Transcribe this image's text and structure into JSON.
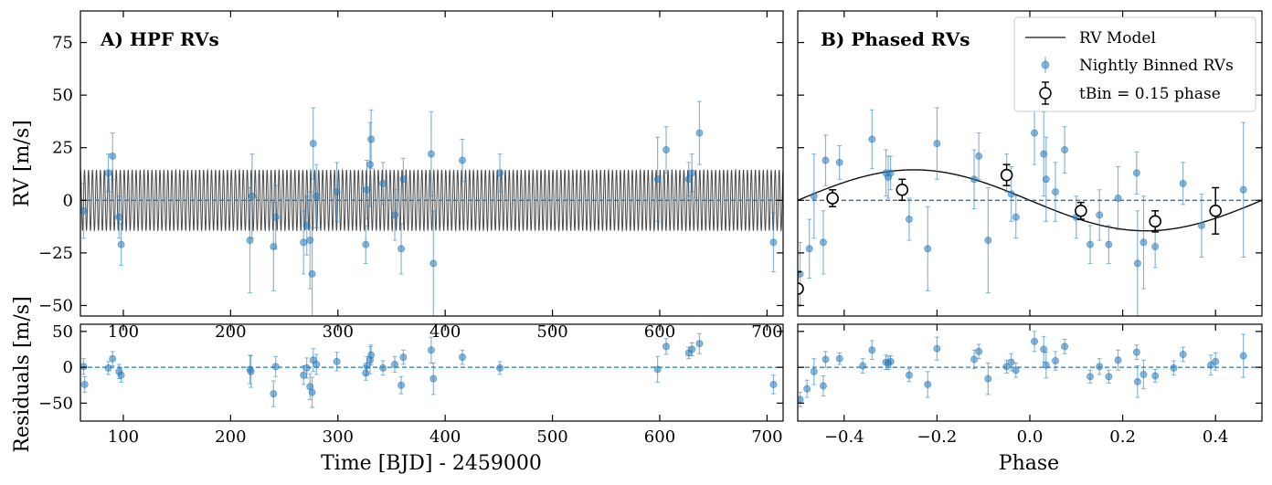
{
  "colors": {
    "points": "#2a7ab9",
    "model": "#111111",
    "zero_line": "#2a7ab9",
    "bins": "#000000"
  },
  "chart_data": [
    {
      "type": "scatter",
      "title": "A) HPF RVs",
      "xlabel": "",
      "ylabel": "RV [m/s]",
      "xlim": [
        60,
        715
      ],
      "ylim": [
        -55,
        90
      ],
      "xticks": [
        "100",
        "200",
        "300",
        "400",
        "500",
        "600",
        "700"
      ],
      "yticks": [
        "75",
        "50",
        "25",
        "0",
        "−25",
        "−50"
      ],
      "model": {
        "type": "sinusoid",
        "amplitude": 14.5,
        "period_days": 3.7,
        "color": "#111111"
      },
      "series": [
        {
          "points": [
            {
              "x": 63,
              "y": -5,
              "err": 13
            },
            {
              "x": 86,
              "y": 13,
              "err": 9
            },
            {
              "x": 90,
              "y": 21,
              "err": 11
            },
            {
              "x": 96,
              "y": -8,
              "err": 10
            },
            {
              "x": 98,
              "y": -21,
              "err": 10
            },
            {
              "x": 218,
              "y": -19,
              "err": 25
            },
            {
              "x": 220,
              "y": 2,
              "err": 20
            },
            {
              "x": 240,
              "y": -22,
              "err": 21
            },
            {
              "x": 242,
              "y": -8,
              "err": 15
            },
            {
              "x": 268,
              "y": -20,
              "err": 15
            },
            {
              "x": 271,
              "y": -12,
              "err": 14
            },
            {
              "x": 274,
              "y": -19,
              "err": 23
            },
            {
              "x": 276,
              "y": -35,
              "err": 22
            },
            {
              "x": 277,
              "y": 27,
              "err": 17
            },
            {
              "x": 280,
              "y": 2,
              "err": 15
            },
            {
              "x": 299,
              "y": 4,
              "err": 14
            },
            {
              "x": 326,
              "y": -21,
              "err": 9
            },
            {
              "x": 327,
              "y": 5,
              "err": 14
            },
            {
              "x": 330,
              "y": 17,
              "err": 20
            },
            {
              "x": 331,
              "y": 29,
              "err": 14
            },
            {
              "x": 342,
              "y": 8,
              "err": 10
            },
            {
              "x": 353,
              "y": -7,
              "err": 12
            },
            {
              "x": 359,
              "y": -23,
              "err": 12
            },
            {
              "x": 361,
              "y": 10,
              "err": 10
            },
            {
              "x": 387,
              "y": 22,
              "err": 20
            },
            {
              "x": 389,
              "y": -30,
              "err": 25
            },
            {
              "x": 416,
              "y": 19,
              "err": 10
            },
            {
              "x": 451,
              "y": 13,
              "err": 9
            },
            {
              "x": 598,
              "y": 10,
              "err": 20
            },
            {
              "x": 606,
              "y": 24,
              "err": 11
            },
            {
              "x": 627,
              "y": 10,
              "err": 8
            },
            {
              "x": 630,
              "y": 13,
              "err": 9
            },
            {
              "x": 637,
              "y": 32,
              "err": 15
            },
            {
              "x": 706,
              "y": -20,
              "err": 14
            }
          ]
        }
      ]
    },
    {
      "type": "scatter",
      "title": "",
      "xlabel": "Time [BJD] - 2459000",
      "ylabel": "Residuals [m/s]",
      "xlim": [
        60,
        715
      ],
      "ylim": [
        -75,
        60
      ],
      "xticks": [
        "100",
        "200",
        "300",
        "400",
        "500",
        "600",
        "700"
      ],
      "yticks": [
        "50",
        "0",
        "−50"
      ],
      "series": [
        {
          "points": [
            {
              "x": 63,
              "y": 1,
              "err": 11
            },
            {
              "x": 64,
              "y": -24,
              "err": 11
            },
            {
              "x": 86,
              "y": -1,
              "err": 9
            },
            {
              "x": 90,
              "y": 12,
              "err": 10
            },
            {
              "x": 96,
              "y": -6,
              "err": 10
            },
            {
              "x": 98,
              "y": -11,
              "err": 10
            },
            {
              "x": 218,
              "y": -3,
              "err": 20
            },
            {
              "x": 219,
              "y": -6,
              "err": 22
            },
            {
              "x": 240,
              "y": -37,
              "err": 18
            },
            {
              "x": 242,
              "y": 1,
              "err": 14
            },
            {
              "x": 268,
              "y": -11,
              "err": 13
            },
            {
              "x": 271,
              "y": -1,
              "err": 14
            },
            {
              "x": 274,
              "y": -27,
              "err": 18
            },
            {
              "x": 276,
              "y": -35,
              "err": 21
            },
            {
              "x": 277,
              "y": 10,
              "err": 16
            },
            {
              "x": 280,
              "y": 4,
              "err": 14
            },
            {
              "x": 299,
              "y": 8,
              "err": 13
            },
            {
              "x": 326,
              "y": -8,
              "err": 10
            },
            {
              "x": 327,
              "y": 2,
              "err": 13
            },
            {
              "x": 330,
              "y": 10,
              "err": 19
            },
            {
              "x": 331,
              "y": 17,
              "err": 14
            },
            {
              "x": 342,
              "y": -1,
              "err": 10
            },
            {
              "x": 353,
              "y": 4,
              "err": 11
            },
            {
              "x": 359,
              "y": -25,
              "err": 12
            },
            {
              "x": 361,
              "y": 14,
              "err": 10
            },
            {
              "x": 387,
              "y": 24,
              "err": 18
            },
            {
              "x": 389,
              "y": -16,
              "err": 22
            },
            {
              "x": 416,
              "y": 14,
              "err": 10
            },
            {
              "x": 451,
              "y": -1,
              "err": 9
            },
            {
              "x": 598,
              "y": -3,
              "err": 18
            },
            {
              "x": 606,
              "y": 29,
              "err": 11
            },
            {
              "x": 627,
              "y": 20,
              "err": 8
            },
            {
              "x": 630,
              "y": 25,
              "err": 9
            },
            {
              "x": 637,
              "y": 33,
              "err": 14
            },
            {
              "x": 706,
              "y": -24,
              "err": 13
            }
          ]
        }
      ]
    },
    {
      "type": "scatter",
      "title": "B) Phased RVs",
      "xlabel": "",
      "ylabel": "",
      "xlim": [
        -0.5,
        0.5
      ],
      "ylim": [
        -55,
        90
      ],
      "xticks": [],
      "yticks": [],
      "model": {
        "type": "sinusoid",
        "amplitude": 14.5,
        "phase_of_max": -0.25,
        "color": "#111111"
      },
      "legend": {
        "position": "top-right",
        "entries": [
          "RV Model",
          "Nightly Binned RVs",
          "tBin = 0.15 phase"
        ]
      },
      "series": [
        {
          "name": "Nightly Binned RVs",
          "points": [
            {
              "x": -0.495,
              "y": -35,
              "err": 15
            },
            {
              "x": -0.475,
              "y": -23,
              "err": 14
            },
            {
              "x": -0.465,
              "y": 2,
              "err": 20
            },
            {
              "x": -0.445,
              "y": -20,
              "err": 15
            },
            {
              "x": -0.44,
              "y": 19,
              "err": 12
            },
            {
              "x": -0.41,
              "y": 18,
              "err": 8
            },
            {
              "x": -0.34,
              "y": 29,
              "err": 14
            },
            {
              "x": -0.31,
              "y": 13,
              "err": 11
            },
            {
              "x": -0.305,
              "y": 11,
              "err": 10
            },
            {
              "x": -0.3,
              "y": 13,
              "err": 8
            },
            {
              "x": -0.26,
              "y": -9,
              "err": 10
            },
            {
              "x": -0.22,
              "y": -23,
              "err": 20
            },
            {
              "x": -0.2,
              "y": 27,
              "err": 17
            },
            {
              "x": -0.12,
              "y": 10,
              "err": 14
            },
            {
              "x": -0.11,
              "y": 21,
              "err": 11
            },
            {
              "x": -0.09,
              "y": -19,
              "err": 25
            },
            {
              "x": -0.05,
              "y": 13,
              "err": 9
            },
            {
              "x": -0.04,
              "y": 3,
              "err": 13
            },
            {
              "x": -0.03,
              "y": -8,
              "err": 10
            },
            {
              "x": 0.01,
              "y": 32,
              "err": 15
            },
            {
              "x": 0.03,
              "y": 22,
              "err": 20
            },
            {
              "x": 0.035,
              "y": 10,
              "err": 20
            },
            {
              "x": 0.055,
              "y": 4,
              "err": 14
            },
            {
              "x": 0.075,
              "y": 24,
              "err": 11
            },
            {
              "x": 0.1,
              "y": -8,
              "err": 10
            },
            {
              "x": 0.13,
              "y": -21,
              "err": 9
            },
            {
              "x": 0.15,
              "y": -7,
              "err": 12
            },
            {
              "x": 0.17,
              "y": -21,
              "err": 9
            },
            {
              "x": 0.19,
              "y": 1,
              "err": 15
            },
            {
              "x": 0.23,
              "y": 13,
              "err": 10
            },
            {
              "x": 0.232,
              "y": -30,
              "err": 25
            },
            {
              "x": 0.245,
              "y": -20,
              "err": 22
            },
            {
              "x": 0.27,
              "y": -22,
              "err": 10
            },
            {
              "x": 0.33,
              "y": 8,
              "err": 10
            },
            {
              "x": 0.37,
              "y": -12,
              "err": 15
            },
            {
              "x": 0.46,
              "y": 5,
              "err": 32
            }
          ]
        },
        {
          "name": "tBin = 0.15 phase",
          "points": [
            {
              "x": -0.425,
              "y": 1,
              "err": 4
            },
            {
              "x": -0.275,
              "y": 5,
              "err": 5
            },
            {
              "x": -0.05,
              "y": 12,
              "err": 5
            },
            {
              "x": 0.11,
              "y": -5,
              "err": 4
            },
            {
              "x": 0.27,
              "y": -10,
              "err": 5
            },
            {
              "x": 0.4,
              "y": -5,
              "err": 11
            },
            {
              "x": -0.5,
              "y": -42,
              "err": 8
            }
          ]
        }
      ]
    },
    {
      "type": "scatter",
      "title": "",
      "xlabel": "Phase",
      "ylabel": "",
      "xlim": [
        -0.5,
        0.5
      ],
      "ylim": [
        -75,
        60
      ],
      "xticks": [
        "−0.4",
        "−0.2",
        "0.0",
        "0.2",
        "0.4"
      ],
      "yticks": [],
      "series": [
        {
          "points": [
            {
              "x": -0.495,
              "y": -45,
              "err": 10
            },
            {
              "x": -0.48,
              "y": -30,
              "err": 12
            },
            {
              "x": -0.465,
              "y": -6,
              "err": 18
            },
            {
              "x": -0.445,
              "y": -26,
              "err": 14
            },
            {
              "x": -0.44,
              "y": 11,
              "err": 11
            },
            {
              "x": -0.41,
              "y": 12,
              "err": 8
            },
            {
              "x": -0.34,
              "y": 24,
              "err": 13
            },
            {
              "x": -0.36,
              "y": 2,
              "err": 10
            },
            {
              "x": -0.31,
              "y": 7,
              "err": 10
            },
            {
              "x": -0.305,
              "y": 6,
              "err": 9
            },
            {
              "x": -0.3,
              "y": 8,
              "err": 8
            },
            {
              "x": -0.26,
              "y": -11,
              "err": 9
            },
            {
              "x": -0.22,
              "y": -24,
              "err": 18
            },
            {
              "x": -0.2,
              "y": 26,
              "err": 16
            },
            {
              "x": -0.12,
              "y": 11,
              "err": 13
            },
            {
              "x": -0.11,
              "y": 22,
              "err": 10
            },
            {
              "x": -0.09,
              "y": -16,
              "err": 22
            },
            {
              "x": -0.05,
              "y": 1,
              "err": 9
            },
            {
              "x": -0.04,
              "y": 7,
              "err": 12
            },
            {
              "x": -0.03,
              "y": -4,
              "err": 10
            },
            {
              "x": 0.01,
              "y": 36,
              "err": 14
            },
            {
              "x": 0.03,
              "y": 25,
              "err": 18
            },
            {
              "x": 0.035,
              "y": 3,
              "err": 18
            },
            {
              "x": 0.055,
              "y": 9,
              "err": 13
            },
            {
              "x": 0.075,
              "y": 29,
              "err": 10
            },
            {
              "x": 0.13,
              "y": -13,
              "err": 9
            },
            {
              "x": 0.15,
              "y": 1,
              "err": 11
            },
            {
              "x": 0.17,
              "y": -13,
              "err": 9
            },
            {
              "x": 0.19,
              "y": 10,
              "err": 14
            },
            {
              "x": 0.23,
              "y": 21,
              "err": 10
            },
            {
              "x": 0.232,
              "y": -20,
              "err": 22
            },
            {
              "x": 0.245,
              "y": -10,
              "err": 20
            },
            {
              "x": 0.27,
              "y": -12,
              "err": 9
            },
            {
              "x": 0.31,
              "y": -1,
              "err": 10
            },
            {
              "x": 0.33,
              "y": 18,
              "err": 10
            },
            {
              "x": 0.39,
              "y": 3,
              "err": 14
            },
            {
              "x": 0.4,
              "y": 8,
              "err": 12
            },
            {
              "x": 0.46,
              "y": 16,
              "err": 30
            }
          ]
        }
      ]
    }
  ]
}
